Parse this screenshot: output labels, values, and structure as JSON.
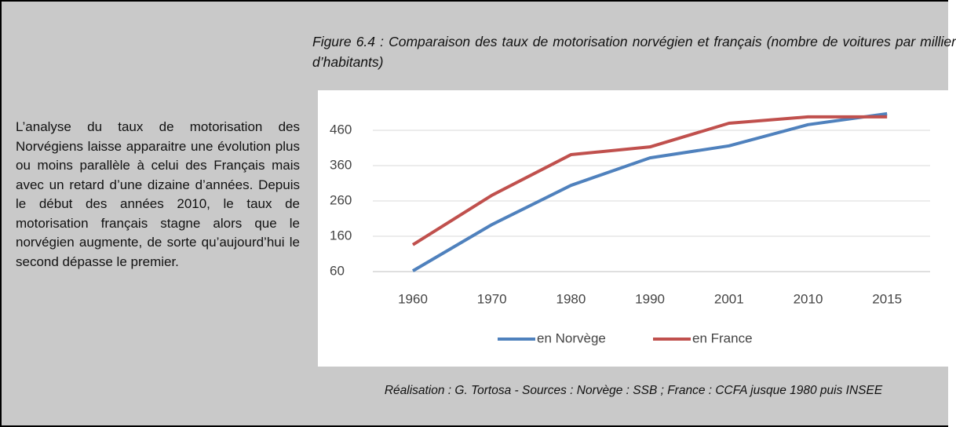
{
  "paragraph": "L’analyse du taux de motorisation des Norvégiens laisse apparaitre une évolution plus ou moins parallèle à celui des Français mais avec un retard d’une dizaine d’années. Depuis le début des années 2010, le taux de motorisation français stagne alors que le norvégien augmente, de sorte qu’aujourd’hui le second dépasse le premier.",
  "caption": "Réalisation : G. Tortosa - Sources : Norvège : SSB ; France :  CCFA jusque 1980 puis INSEE",
  "chart_data": {
    "type": "line",
    "title": "Figure 6.4 : Comparaison des taux de motorisation norvégien et français (nombre de voitures par millier d’habitants)",
    "categories": [
      "1960",
      "1970",
      "1980",
      "1990",
      "2001",
      "2010",
      "2015"
    ],
    "series": [
      {
        "name": "en Norvège",
        "color": "#4f81bd",
        "values": [
          62,
          193,
          304,
          382,
          416,
          476,
          507
        ]
      },
      {
        "name": "en France",
        "color": "#c0504d",
        "values": [
          136,
          276,
          391,
          413,
          480,
          498,
          498
        ]
      }
    ],
    "ylim": [
      60,
      520
    ],
    "yticks": [
      60,
      160,
      260,
      360,
      460
    ],
    "grid": true,
    "legend": "bottom"
  }
}
